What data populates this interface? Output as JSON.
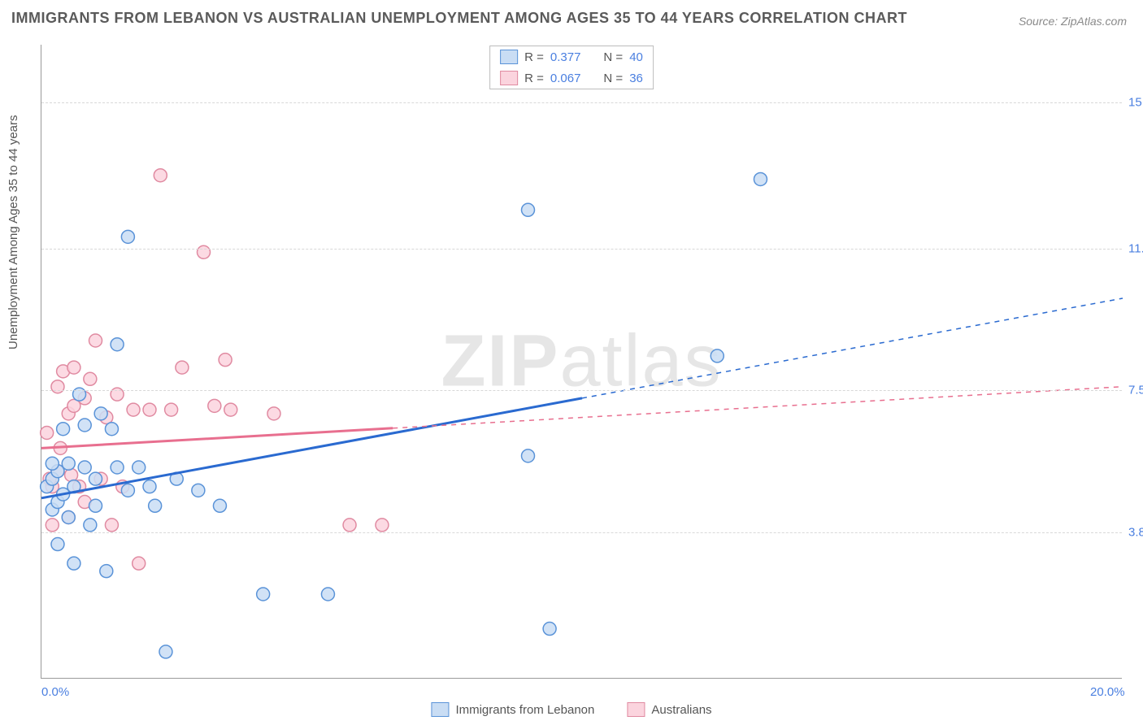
{
  "title": "IMMIGRANTS FROM LEBANON VS AUSTRALIAN UNEMPLOYMENT AMONG AGES 35 TO 44 YEARS CORRELATION CHART",
  "source": "Source: ZipAtlas.com",
  "ylabel": "Unemployment Among Ages 35 to 44 years",
  "watermark_a": "ZIP",
  "watermark_b": "atlas",
  "chart": {
    "type": "scatter-with-regression",
    "background_color": "#ffffff",
    "grid_color": "#d8d8d8",
    "axis_color": "#9a9a9a",
    "xlim": [
      0,
      20
    ],
    "ylim": [
      0,
      16.5
    ],
    "xticks": [
      {
        "v": 0.0,
        "label": "0.0%"
      },
      {
        "v": 20.0,
        "label": "20.0%"
      }
    ],
    "yticks": [
      {
        "v": 3.8,
        "label": "3.8%"
      },
      {
        "v": 7.5,
        "label": "7.5%"
      },
      {
        "v": 11.2,
        "label": "11.2%"
      },
      {
        "v": 15.0,
        "label": "15.0%"
      }
    ],
    "marker_radius": 8,
    "marker_stroke_width": 1.5,
    "line_width": 3,
    "series": [
      {
        "name": "Immigrants from Lebanon",
        "key": "lebanon",
        "fill": "#c9ddf4",
        "stroke": "#5a93d8",
        "line_color": "#2a6ad0",
        "R": "0.377",
        "N": "40",
        "regression": {
          "x1": 0.0,
          "y1": 4.7,
          "x2": 20.0,
          "y2": 9.9,
          "solid_until_x": 10.0
        },
        "points": [
          {
            "x": 0.1,
            "y": 5.0
          },
          {
            "x": 0.2,
            "y": 4.4
          },
          {
            "x": 0.2,
            "y": 5.2
          },
          {
            "x": 0.3,
            "y": 4.6
          },
          {
            "x": 0.3,
            "y": 5.4
          },
          {
            "x": 0.4,
            "y": 4.8
          },
          {
            "x": 0.4,
            "y": 6.5
          },
          {
            "x": 0.5,
            "y": 5.6
          },
          {
            "x": 0.5,
            "y": 4.2
          },
          {
            "x": 0.6,
            "y": 5.0
          },
          {
            "x": 0.7,
            "y": 7.4
          },
          {
            "x": 0.8,
            "y": 6.6
          },
          {
            "x": 0.8,
            "y": 5.5
          },
          {
            "x": 0.9,
            "y": 4.0
          },
          {
            "x": 1.0,
            "y": 5.2
          },
          {
            "x": 1.0,
            "y": 4.5
          },
          {
            "x": 1.1,
            "y": 6.9
          },
          {
            "x": 1.2,
            "y": 2.8
          },
          {
            "x": 1.4,
            "y": 8.7
          },
          {
            "x": 1.4,
            "y": 5.5
          },
          {
            "x": 1.6,
            "y": 4.9
          },
          {
            "x": 1.6,
            "y": 11.5
          },
          {
            "x": 1.8,
            "y": 5.5
          },
          {
            "x": 2.0,
            "y": 5.0
          },
          {
            "x": 2.1,
            "y": 4.5
          },
          {
            "x": 2.3,
            "y": 0.7
          },
          {
            "x": 2.5,
            "y": 5.2
          },
          {
            "x": 2.9,
            "y": 4.9
          },
          {
            "x": 3.3,
            "y": 4.5
          },
          {
            "x": 4.1,
            "y": 2.2
          },
          {
            "x": 5.3,
            "y": 2.2
          },
          {
            "x": 9.0,
            "y": 12.2
          },
          {
            "x": 9.0,
            "y": 5.8
          },
          {
            "x": 9.4,
            "y": 1.3
          },
          {
            "x": 12.5,
            "y": 8.4
          },
          {
            "x": 13.3,
            "y": 13.0
          },
          {
            "x": 0.3,
            "y": 3.5
          },
          {
            "x": 0.6,
            "y": 3.0
          },
          {
            "x": 1.3,
            "y": 6.5
          },
          {
            "x": 0.2,
            "y": 5.6
          }
        ]
      },
      {
        "name": "Australians",
        "key": "australians",
        "fill": "#fbd4de",
        "stroke": "#e08aa1",
        "line_color": "#e86f8f",
        "R": "0.067",
        "N": "36",
        "regression": {
          "x1": 0.0,
          "y1": 6.0,
          "x2": 20.0,
          "y2": 7.6,
          "solid_until_x": 6.5
        },
        "points": [
          {
            "x": 0.1,
            "y": 6.4
          },
          {
            "x": 0.2,
            "y": 4.0
          },
          {
            "x": 0.2,
            "y": 5.0
          },
          {
            "x": 0.3,
            "y": 5.4
          },
          {
            "x": 0.3,
            "y": 7.6
          },
          {
            "x": 0.4,
            "y": 8.0
          },
          {
            "x": 0.5,
            "y": 6.9
          },
          {
            "x": 0.5,
            "y": 4.2
          },
          {
            "x": 0.6,
            "y": 8.1
          },
          {
            "x": 0.6,
            "y": 7.1
          },
          {
            "x": 0.7,
            "y": 5.0
          },
          {
            "x": 0.8,
            "y": 4.6
          },
          {
            "x": 0.9,
            "y": 7.8
          },
          {
            "x": 1.0,
            "y": 8.8
          },
          {
            "x": 1.1,
            "y": 5.2
          },
          {
            "x": 1.2,
            "y": 6.8
          },
          {
            "x": 1.3,
            "y": 4.0
          },
          {
            "x": 1.5,
            "y": 5.0
          },
          {
            "x": 1.7,
            "y": 7.0
          },
          {
            "x": 1.8,
            "y": 3.0
          },
          {
            "x": 2.0,
            "y": 7.0
          },
          {
            "x": 2.2,
            "y": 13.1
          },
          {
            "x": 2.4,
            "y": 7.0
          },
          {
            "x": 2.6,
            "y": 8.1
          },
          {
            "x": 3.0,
            "y": 11.1
          },
          {
            "x": 3.2,
            "y": 7.1
          },
          {
            "x": 3.4,
            "y": 8.3
          },
          {
            "x": 3.5,
            "y": 7.0
          },
          {
            "x": 4.3,
            "y": 6.9
          },
          {
            "x": 5.7,
            "y": 4.0
          },
          {
            "x": 6.3,
            "y": 4.0
          },
          {
            "x": 0.15,
            "y": 5.2
          },
          {
            "x": 0.35,
            "y": 6.0
          },
          {
            "x": 0.55,
            "y": 5.3
          },
          {
            "x": 0.8,
            "y": 7.3
          },
          {
            "x": 1.4,
            "y": 7.4
          }
        ]
      }
    ]
  },
  "legend_top": {
    "r_label": "R  =",
    "n_label": "N  ="
  },
  "legend_bottom": {
    "s1": "Immigrants from Lebanon",
    "s2": "Australians"
  }
}
